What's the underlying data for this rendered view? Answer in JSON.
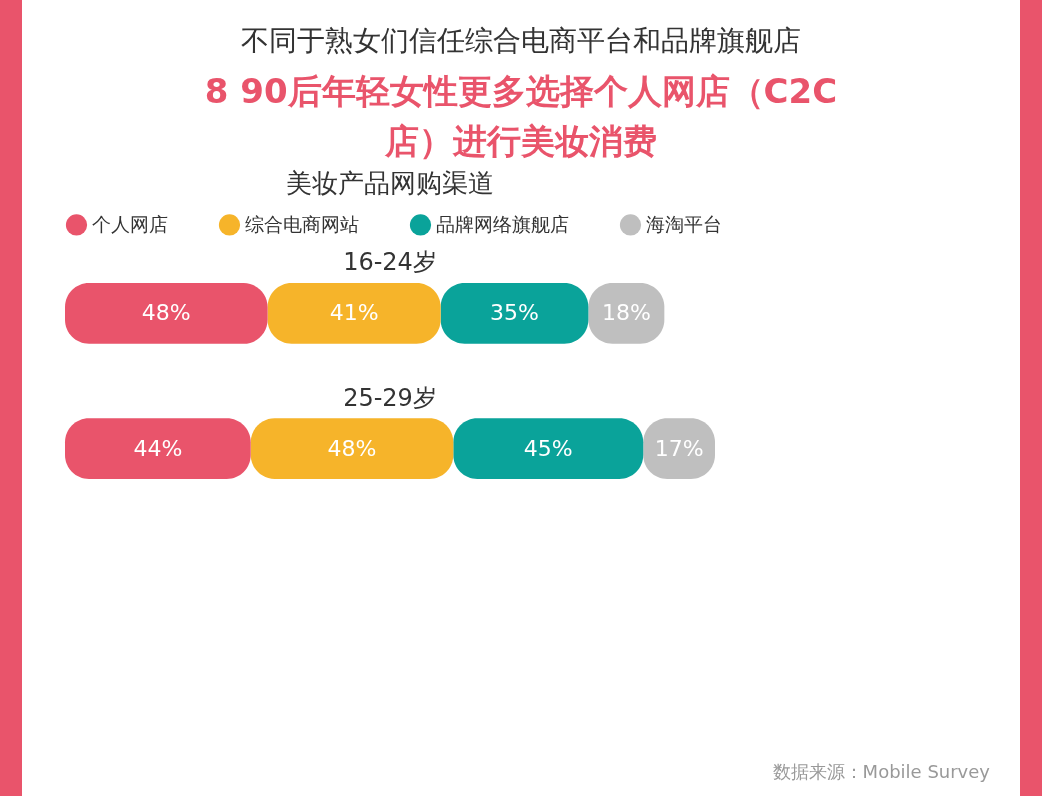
{
  "chart_data": {
    "type": "bar",
    "orientation": "horizontal",
    "stacked": true,
    "title": "不同于熟女们信任综合电商平台和品牌旗舰店",
    "subtitle": "8 90后年轻女性更多选择个人网店（C2C店）进行美妆消费",
    "annotations": [
      "美妆产品网购渠道",
      "数据来源：Mobile Survey"
    ],
    "categories": [
      "16-24岁",
      "25-29岁"
    ],
    "series": [
      {
        "name": "个人网店",
        "color": "#e9546b",
        "values": [
          48,
          44
        ],
        "value_labels": [
          "48%",
          "44%"
        ]
      },
      {
        "name": "综合电商网站",
        "color": "#f6b42a",
        "values": [
          41,
          48
        ],
        "value_labels": [
          "41%",
          "48%"
        ]
      },
      {
        "name": "品牌网络旗舰店",
        "color": "#0aa39a",
        "values": [
          35,
          45
        ],
        "value_labels": [
          "35%",
          "45%"
        ]
      },
      {
        "name": "海淘平台",
        "color": "#bfbfbf",
        "values": [
          18,
          17
        ],
        "value_labels": [
          "18%",
          "17%"
        ]
      }
    ],
    "legend": "top"
  }
}
